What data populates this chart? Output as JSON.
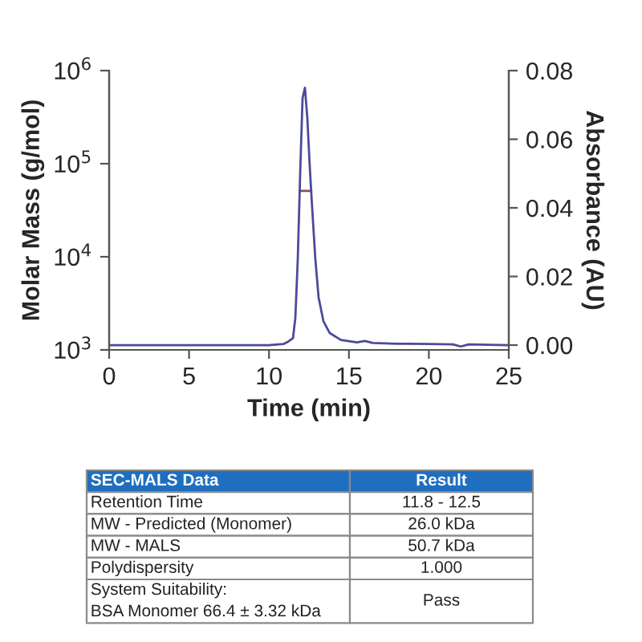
{
  "chart_data": [
    {
      "type": "line",
      "xlabel": "Time (min)",
      "ylabel": "Molar Mass (g/mol)",
      "y2label": "Absorbance (AU)",
      "log": "y",
      "grid": false,
      "marker": "none",
      "line_style": "solid",
      "xlim": [
        0,
        25
      ],
      "xticks": [
        0,
        5,
        10,
        15,
        20,
        25
      ],
      "ylim": [
        1000,
        1000000
      ],
      "yticks": [
        {
          "value": 1000,
          "label": "10$^{3}$"
        },
        {
          "value": 10000,
          "label": "10$^{4}$"
        },
        {
          "value": 100000,
          "label": "10$^{5}$"
        },
        {
          "value": 1000000,
          "label": "10$^{6}$"
        }
      ],
      "y2lim": [
        -0.0014,
        0.08
      ],
      "y2ticks": [
        {
          "value": 0,
          "label": "0.00"
        },
        {
          "value": 0.02,
          "label": "0.02"
        },
        {
          "value": 0.04,
          "label": "0.04"
        },
        {
          "value": 0.06,
          "label": "0.06"
        },
        {
          "value": 0.08,
          "label": "0.08"
        }
      ],
      "series": [
        {
          "axis": "y2",
          "color": "#4b4a9a",
          "x": [
            0,
            5,
            10,
            10.9,
            11.2,
            11.5,
            11.65,
            11.8,
            11.95,
            12.1,
            12.25,
            12.4,
            12.55,
            12.7,
            12.9,
            13.1,
            13.4,
            13.8,
            14.5,
            15.5,
            16.0,
            16.5,
            18,
            20,
            21.5,
            22,
            22.5,
            25
          ],
          "values": [
            0.0,
            0.0,
            0.0,
            0.0003,
            0.001,
            0.002,
            0.008,
            0.025,
            0.05,
            0.072,
            0.075,
            0.066,
            0.052,
            0.04,
            0.025,
            0.014,
            0.007,
            0.0035,
            0.0015,
            0.0008,
            0.0012,
            0.0006,
            0.0004,
            0.0003,
            0.0002,
            -0.0004,
            0.0002,
            0.0
          ]
        },
        {
          "axis": "y",
          "color": "#8b4a5a",
          "x": [
            11.93,
            12.65
          ],
          "values": [
            51000,
            51000
          ]
        }
      ]
    },
    {
      "type": "other",
      "annotations": [
        "SEC-MALS Data",
        "Result",
        "Retention Time",
        "11.8 - 12.5",
        "MW - Predicted (Monomer)",
        "26.0 kDa",
        "MW - MALS",
        "50.7 kDa",
        "Polydispersity",
        "1.000",
        "System Suitability:\nBSA Monomer 66.4 ± 3.32 kDa",
        "Pass"
      ]
    }
  ]
}
